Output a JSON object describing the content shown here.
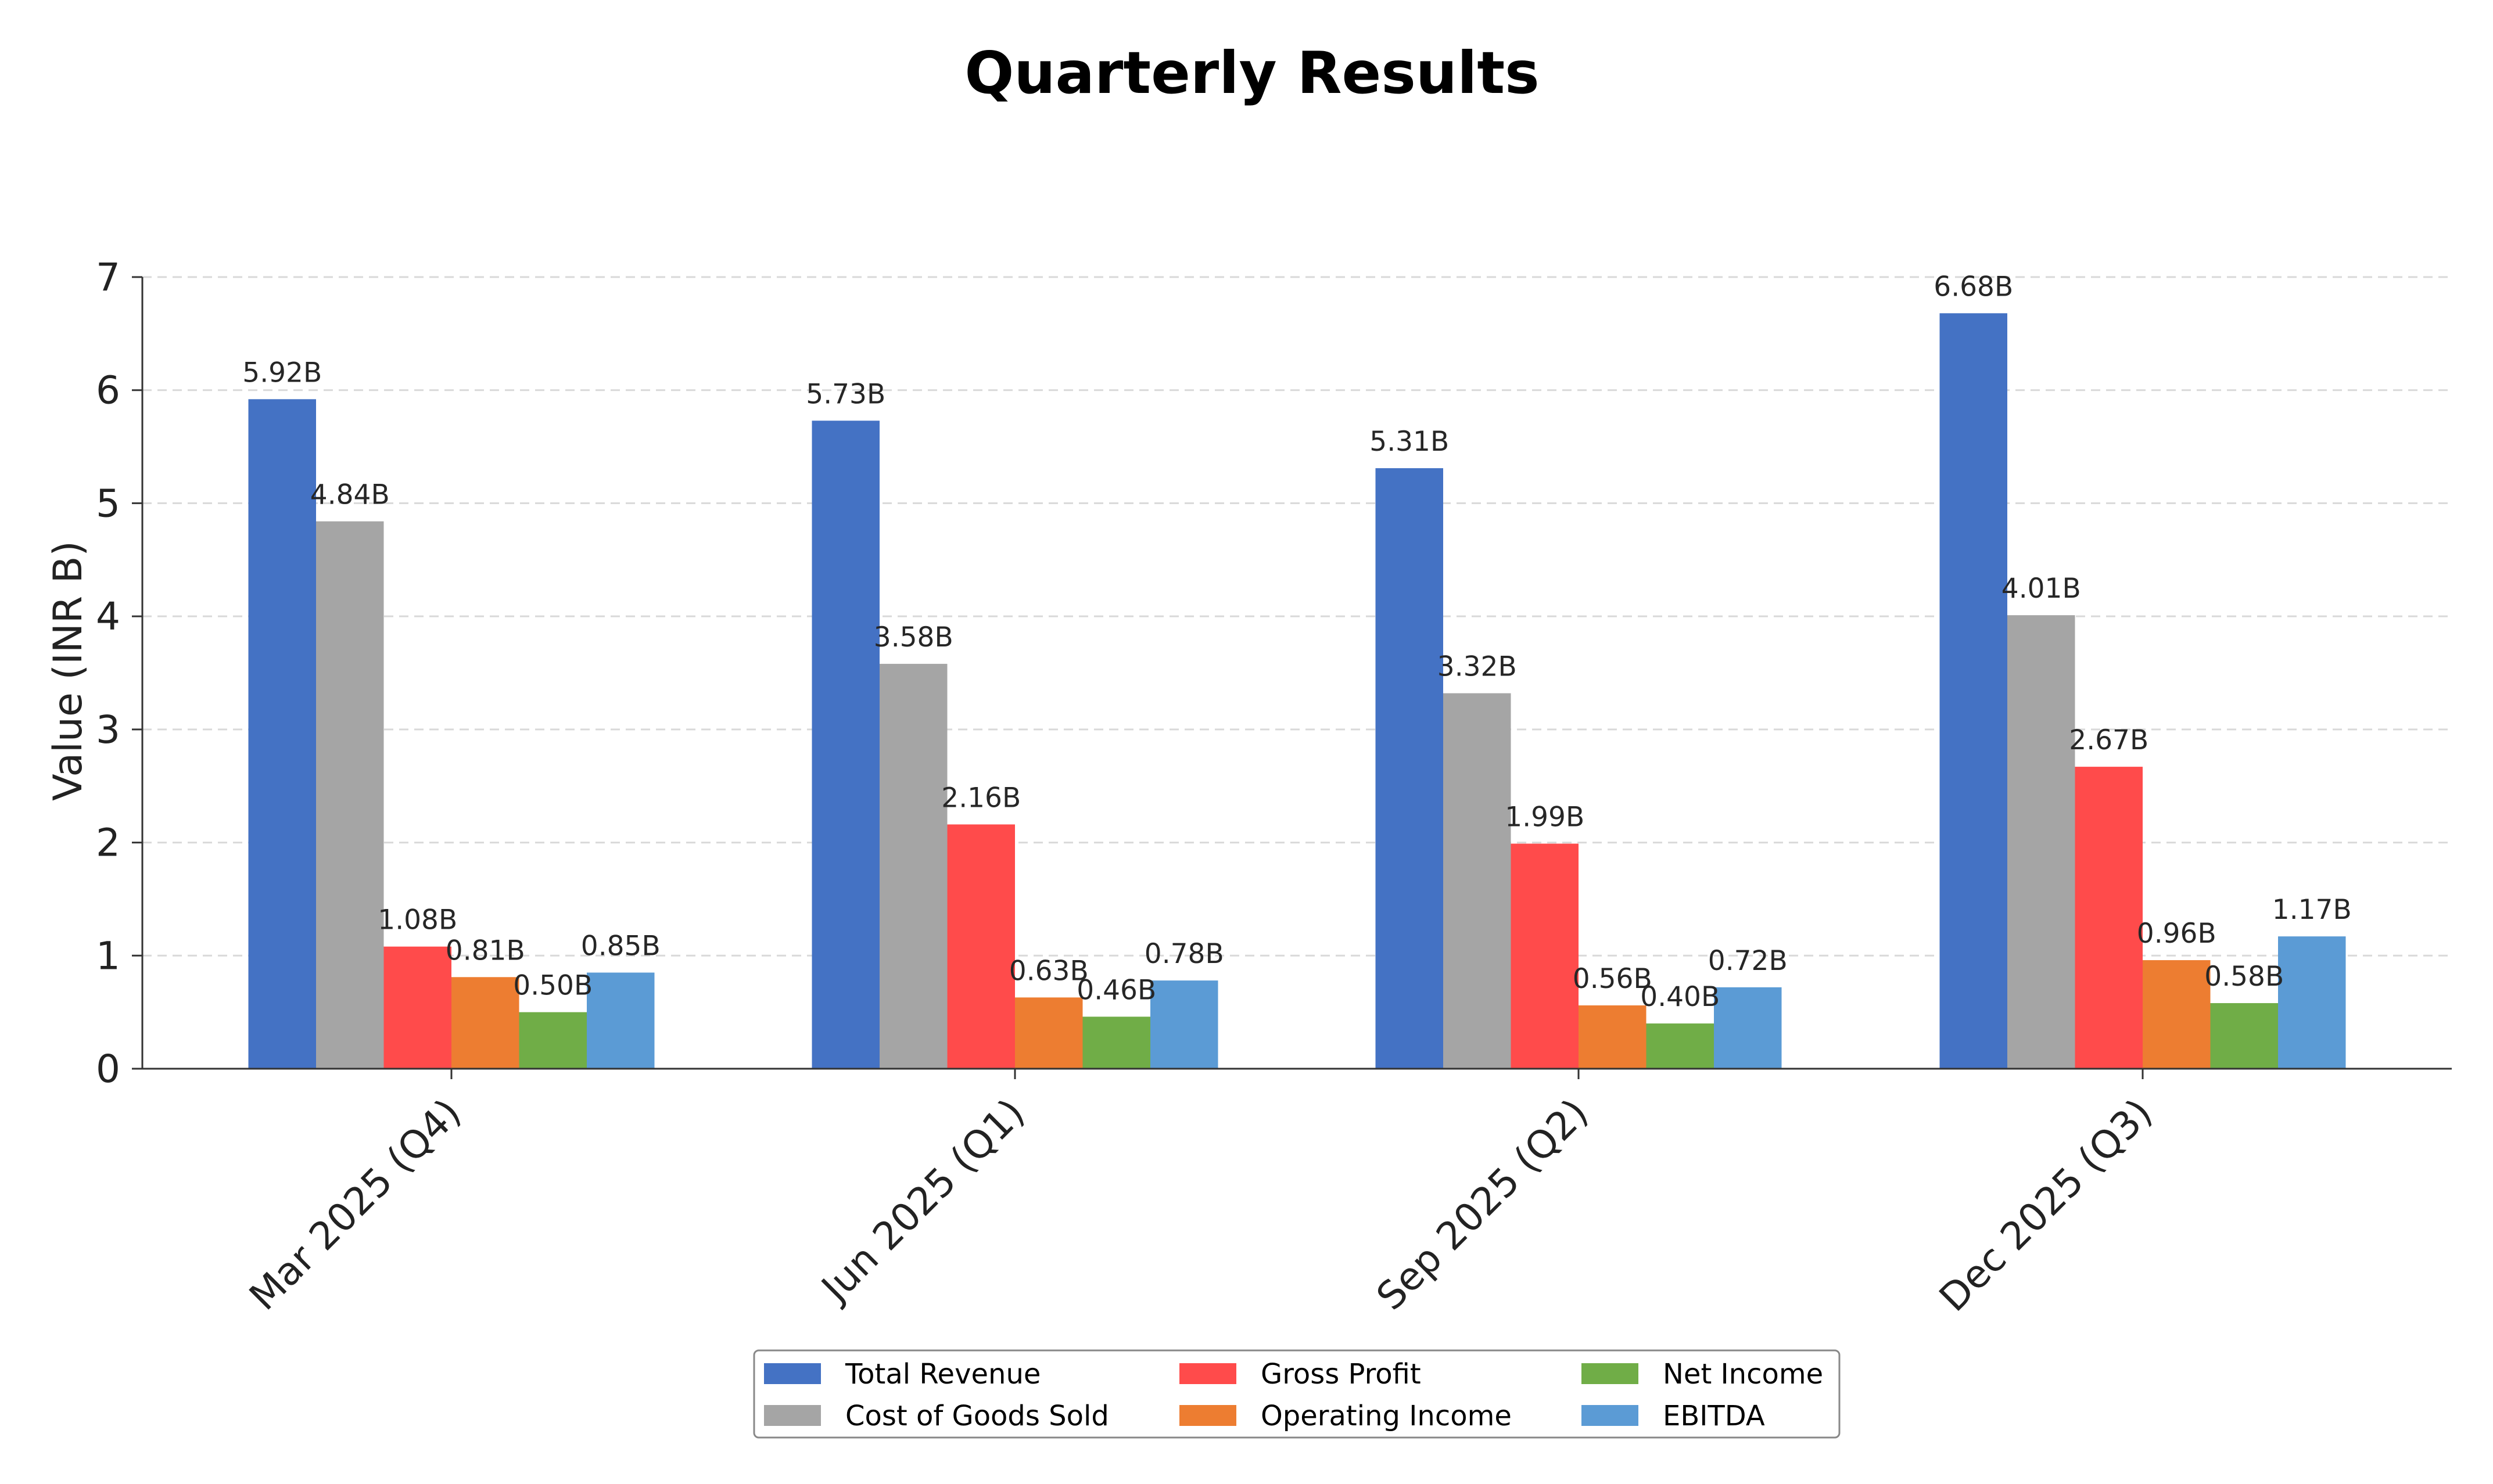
{
  "chart_data": {
    "type": "bar",
    "title": "Quarterly Results",
    "xlabel": "",
    "ylabel": "Value (INR B)",
    "ylim": [
      0,
      7
    ],
    "yticks": [
      0,
      1,
      2,
      3,
      4,
      5,
      6,
      7
    ],
    "grid": "horizontal dashed",
    "legend_position": "bottom-center",
    "value_suffix": "B",
    "categories": [
      "Mar 2025 (Q4)",
      "Jun 2025 (Q1)",
      "Sep 2025 (Q2)",
      "Dec 2025 (Q3)"
    ],
    "series": [
      {
        "name": "Total Revenue",
        "color": "#4472C4",
        "values": [
          5.92,
          5.73,
          5.31,
          6.68
        ]
      },
      {
        "name": "Cost of Goods Sold",
        "color": "#A5A5A5",
        "values": [
          4.84,
          3.58,
          3.32,
          4.01
        ]
      },
      {
        "name": "Gross Profit",
        "color": "#FF4B4B",
        "values": [
          1.08,
          2.16,
          1.99,
          2.67
        ]
      },
      {
        "name": "Operating Income",
        "color": "#ED7D31",
        "values": [
          0.81,
          0.63,
          0.56,
          0.96
        ]
      },
      {
        "name": "Net Income",
        "color": "#70AD47",
        "values": [
          0.5,
          0.46,
          0.4,
          0.58
        ]
      },
      {
        "name": "EBITDA",
        "color": "#5B9BD5",
        "values": [
          0.85,
          0.78,
          0.72,
          1.17
        ]
      }
    ]
  }
}
